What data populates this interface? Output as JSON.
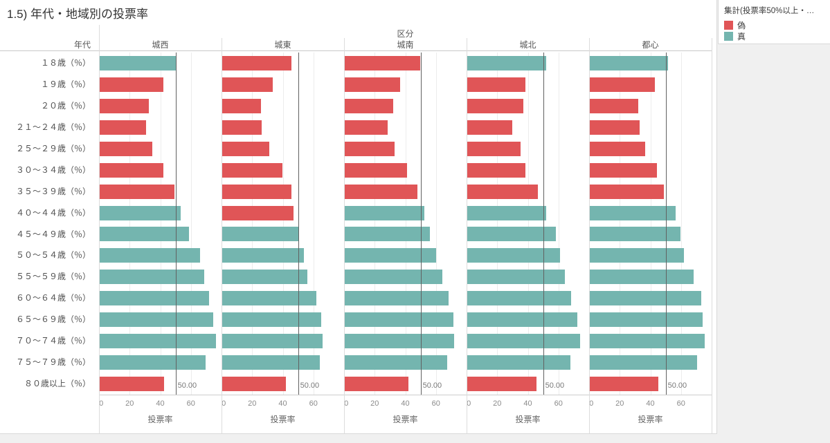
{
  "title": "1.5) 年代・地域別の投票率",
  "legend": {
    "title": "集計(投票率50%以上・…",
    "items": [
      {
        "label": "偽",
        "color": "#e05557"
      },
      {
        "label": "真",
        "color": "#74b5af"
      }
    ]
  },
  "chart_data": {
    "type": "bar",
    "orientation": "horizontal",
    "title": "1.5) 年代・地域別の投票率",
    "col_header": "区分",
    "row_header": "年代",
    "xlabel": "投票率",
    "x_ticks": [
      0,
      20,
      40,
      60
    ],
    "x_max": 80,
    "reference_line": {
      "value": 50,
      "label": "50.00"
    },
    "threshold": 50,
    "color_below": "#e05557",
    "color_above": "#74b5af",
    "legend_position": "top-right",
    "grid": true,
    "categories": [
      "１８歳（％）",
      "１９歳（％）",
      "２０歳（％）",
      "２１～２４歳（％）",
      "２５～２９歳（％）",
      "３０～３４歳（％）",
      "３５～３９歳（％）",
      "４０～４４歳（％）",
      "４５～４９歳（％）",
      "５０～５４歳（％）",
      "５５～５９歳（％）",
      "６０～６４歳（％）",
      "６５～６９歳（％）",
      "７０～７４歳（％）",
      "７５～７９歳（％）",
      "８０歳以上（％）"
    ],
    "series": [
      {
        "name": "城西",
        "values": [
          50.8,
          41.9,
          32.6,
          30.8,
          35.0,
          41.9,
          49.3,
          53.2,
          58.9,
          65.8,
          68.6,
          71.7,
          74.4,
          76.3,
          69.4,
          42.7
        ]
      },
      {
        "name": "城東",
        "values": [
          45.8,
          33.3,
          25.9,
          26.4,
          31.0,
          39.7,
          45.8,
          47.0,
          50.8,
          53.8,
          56.1,
          61.8,
          65.2,
          66.2,
          64.0,
          42.0
        ]
      },
      {
        "name": "城南",
        "values": [
          49.7,
          36.8,
          32.2,
          28.5,
          33.0,
          41.3,
          47.7,
          52.3,
          56.1,
          60.3,
          64.4,
          68.2,
          71.3,
          72.0,
          67.5,
          42.0
        ]
      },
      {
        "name": "城北",
        "values": [
          51.8,
          38.3,
          37.1,
          30.0,
          35.3,
          38.6,
          46.6,
          51.8,
          58.1,
          60.8,
          64.2,
          68.4,
          72.4,
          74.1,
          67.9,
          45.8
        ]
      },
      {
        "name": "都心",
        "values": [
          51.5,
          43.1,
          32.3,
          33.0,
          36.8,
          44.3,
          48.8,
          56.6,
          59.7,
          61.9,
          68.4,
          73.2,
          74.1,
          75.4,
          70.3,
          45.3
        ]
      }
    ]
  }
}
